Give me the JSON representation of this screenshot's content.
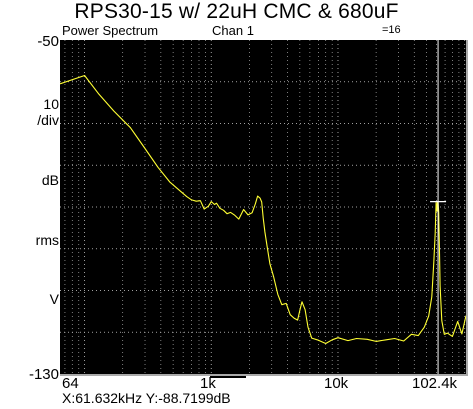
{
  "header": {
    "title": "RPS30-15 w/ 22uH CMC & 680uF",
    "measurement": "Power Spectrum",
    "channel": "Chan 1",
    "averages": "=16"
  },
  "y_axis_labels": {
    "top": "-50",
    "scale_value": "10",
    "scale_unit": "/div",
    "unit_db": "dB",
    "unit_rms": "rms",
    "unit_v": "V",
    "bottom": "-130"
  },
  "x_axis_labels": {
    "left": "64",
    "k1": "1k",
    "k10": "10k",
    "right": "102.4k"
  },
  "readout": "X:61.632kHz Y:-88.7199dB",
  "colors": {
    "background": "#000000",
    "trace": "#ffff33",
    "grid": "#b0b0b0",
    "marker": "#ffffff"
  },
  "chart_data": {
    "type": "line",
    "title": "RPS30-15 w/ 22uH CMC & 680uF",
    "subtitle": "Power Spectrum   Chan 1",
    "xlabel": "",
    "ylabel": "",
    "x_scale": "log",
    "xlim": [
      64,
      102400
    ],
    "ylim": [
      -130,
      -50
    ],
    "grid": true,
    "x_tick_labels": [
      "64",
      "1k",
      "10k",
      "102.4k"
    ],
    "y_tick_labels": [
      "-50",
      "-130"
    ],
    "marker": {
      "x": 61632,
      "y": -88.7199
    },
    "series": [
      {
        "x": [
          64,
          100,
          130,
          170,
          230,
          300,
          380,
          470,
          560,
          640,
          700,
          760,
          820,
          880,
          950,
          1000,
          1060,
          1100,
          1170,
          1250,
          1330,
          1420,
          1520,
          1650,
          1800,
          1950,
          2100,
          2230,
          2320,
          2430,
          2500,
          2570,
          2650,
          2750,
          2900,
          3100,
          3350,
          3600,
          3900,
          4200,
          4500,
          4800,
          5000,
          5200,
          5500,
          5800,
          6200,
          7000,
          8000,
          9000,
          10000,
          12000,
          14000,
          17000,
          20000,
          24000,
          28000,
          33000,
          38000,
          43000,
          48000,
          52000,
          55000,
          57000,
          58500,
          59500,
          60500,
          61000,
          61632,
          62300,
          63000,
          64000,
          66000,
          69000,
          73000,
          80000,
          88000,
          95000,
          102400
        ],
        "y": [
          -60.5,
          -58.5,
          -63,
          -67,
          -71,
          -76,
          -80.5,
          -84,
          -86,
          -87.5,
          -88.3,
          -88.6,
          -88.5,
          -90.5,
          -89.8,
          -88.7,
          -89.4,
          -89.1,
          -90.3,
          -90.8,
          -91.6,
          -91.3,
          -91.9,
          -92.9,
          -90.6,
          -91.9,
          -91.4,
          -89.2,
          -87.4,
          -87.9,
          -88.8,
          -92.6,
          -96,
          -99.1,
          -103.6,
          -106.6,
          -110.9,
          -113.4,
          -113.1,
          -115.8,
          -116.6,
          -117.1,
          -114.8,
          -112.7,
          -114.6,
          -118.8,
          -121.4,
          -121.9,
          -122.7,
          -121.8,
          -121.3,
          -122,
          -121.5,
          -121.7,
          -122.2,
          -121.8,
          -121.5,
          -122.1,
          -120.5,
          -120.8,
          -118.8,
          -116.1,
          -111.5,
          -103.2,
          -96.3,
          -88.9,
          -91,
          -88.7,
          -88.7,
          -91.4,
          -98.2,
          -108.9,
          -117.2,
          -120.5,
          -120.2,
          -121,
          -117.4,
          -120.4,
          -116
        ]
      }
    ]
  }
}
